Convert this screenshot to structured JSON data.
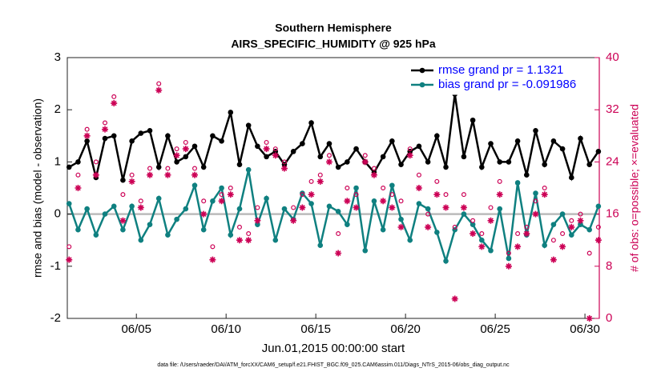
{
  "chart_data": {
    "type": "line",
    "title": "Southern Hemisphere",
    "subtitle": "AIRS_SPECIFIC_HUMIDITY @ 925 hPa",
    "x_label": "Jun.01,2015 00:00:00 start",
    "y_label": "rmse and bias (model - observation)",
    "y2_label": "# of obs: o=possible; ×=evaluated",
    "footnote": "data file: /Users/raeder/DAI/ATM_forcXX/CAM6_setup/f.e21.FHIST_BGC.f09_025.CAM6assim.011/Diags_NTrS_2015-06/obs_diag_output.nc",
    "x": [
      1.25,
      1.75,
      2.25,
      2.75,
      3.25,
      3.75,
      4.25,
      4.75,
      5.25,
      5.75,
      6.25,
      6.75,
      7.25,
      7.75,
      8.25,
      8.75,
      9.25,
      9.75,
      10.25,
      10.75,
      11.25,
      11.75,
      12.25,
      12.75,
      13.25,
      13.75,
      14.25,
      14.75,
      15.25,
      15.75,
      16.25,
      16.75,
      17.25,
      17.75,
      18.25,
      18.75,
      19.25,
      19.75,
      20.25,
      20.75,
      21.25,
      21.75,
      22.25,
      22.75,
      23.25,
      23.75,
      24.25,
      24.75,
      25.25,
      25.75,
      26.25,
      26.75,
      27.25,
      27.75,
      28.25,
      28.75,
      29.25,
      29.75,
      30.25,
      30.75
    ],
    "xlim": [
      1.15,
      30.8
    ],
    "xticks": [
      {
        "value": 5,
        "label": "06/05"
      },
      {
        "value": 10,
        "label": "06/10"
      },
      {
        "value": 15,
        "label": "06/15"
      },
      {
        "value": 20,
        "label": "06/20"
      },
      {
        "value": 25,
        "label": "06/25"
      },
      {
        "value": 30,
        "label": "06/30"
      }
    ],
    "ylim": [
      -2,
      3
    ],
    "yticks": [
      -2,
      -1,
      0,
      1,
      2,
      3
    ],
    "y2lim": [
      0,
      40
    ],
    "y2ticks": [
      0,
      8,
      16,
      24,
      32,
      40
    ],
    "y2_color": "#cc0055",
    "zero_line": true,
    "legend": "upper right",
    "legend_text_color": "#0000ff",
    "series": [
      {
        "name": "rmse grand pr = 1.1321",
        "color": "#000000",
        "marker": "dot",
        "values": [
          0.9,
          1.0,
          1.4,
          0.7,
          1.45,
          1.5,
          0.65,
          1.4,
          1.55,
          1.6,
          0.9,
          1.5,
          1.0,
          1.1,
          1.3,
          0.9,
          1.5,
          1.4,
          1.95,
          0.95,
          1.7,
          1.3,
          1.1,
          1.2,
          0.95,
          1.2,
          1.35,
          1.75,
          1.1,
          1.35,
          0.9,
          1.0,
          1.25,
          1.0,
          0.8,
          1.1,
          1.4,
          0.95,
          1.2,
          1.3,
          1.0,
          1.5,
          0.9,
          2.3,
          1.1,
          1.8,
          0.9,
          1.35,
          1.0,
          1.0,
          1.4,
          0.75,
          1.6,
          0.95,
          1.4,
          1.25,
          0.7,
          1.45,
          0.95,
          1.2
        ]
      },
      {
        "name": "bias grand pr = -0.091986",
        "color": "#0f8080",
        "marker": "dot",
        "values": [
          0.2,
          -0.3,
          0.1,
          -0.4,
          0.0,
          0.15,
          -0.3,
          0.15,
          -0.5,
          -0.2,
          0.3,
          -0.4,
          -0.1,
          0.1,
          0.55,
          -0.3,
          0.25,
          0.5,
          -0.4,
          0.1,
          0.85,
          -0.2,
          0.3,
          -0.5,
          0.1,
          -0.1,
          0.4,
          0.2,
          -0.6,
          0.15,
          0.05,
          -0.2,
          0.5,
          -0.7,
          0.25,
          -0.3,
          0.55,
          -0.1,
          -0.5,
          0.2,
          0.1,
          -0.35,
          -0.9,
          -0.3,
          0.0,
          -0.2,
          -0.5,
          -0.7,
          0.1,
          -0.85,
          0.6,
          -0.4,
          0.4,
          -0.6,
          -0.2,
          0.0,
          -0.4,
          -0.2,
          -0.3,
          0.15
        ]
      },
      {
        "axis": "y2",
        "color": "#cc0055",
        "marker": "circle",
        "values": [
          11,
          22,
          29,
          24,
          30,
          34,
          19,
          22,
          18,
          23,
          36,
          23,
          26,
          27,
          23,
          18,
          11,
          19,
          20,
          14,
          13,
          17,
          27,
          26,
          24,
          17,
          19,
          21,
          22,
          25,
          13,
          20,
          19,
          25,
          23,
          20,
          19,
          18,
          26,
          22,
          16,
          21,
          19,
          14,
          19,
          15,
          13,
          17,
          21,
          10,
          13,
          14,
          18,
          20,
          12,
          13,
          15,
          16,
          10,
          14
        ]
      },
      {
        "axis": "y2",
        "color": "#cc0055",
        "marker": "asterisk",
        "values": [
          9,
          20,
          28,
          22,
          29,
          33,
          15,
          21,
          17,
          22,
          35,
          22,
          25,
          26,
          22,
          16,
          9,
          18,
          19,
          12,
          12,
          15,
          26,
          25,
          23,
          15,
          17,
          19,
          21,
          24,
          10,
          18,
          17,
          24,
          22,
          18,
          17,
          14,
          25,
          20,
          14,
          19,
          17,
          3,
          17,
          13,
          11,
          15,
          19,
          8,
          11,
          13,
          16,
          19,
          9,
          11,
          14,
          15,
          0,
          12
        ]
      }
    ]
  }
}
